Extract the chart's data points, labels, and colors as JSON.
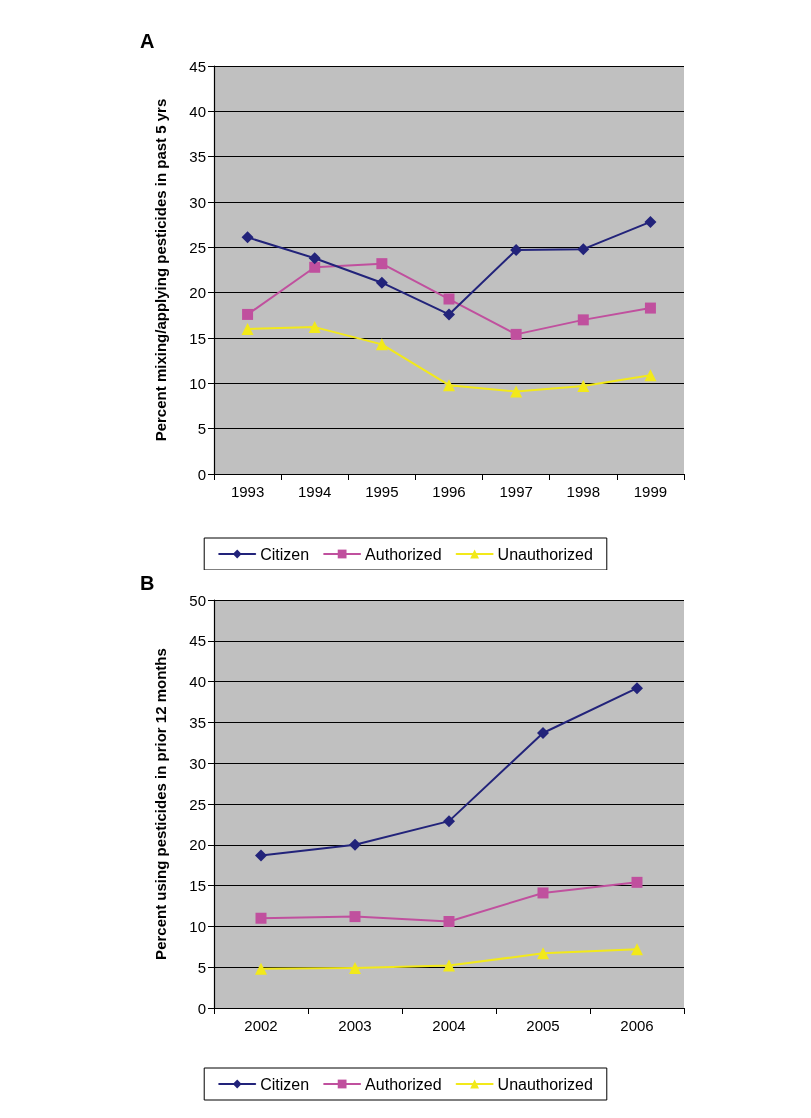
{
  "chart_data": [
    {
      "type": "line",
      "title": "A",
      "ylabel": "Percent mixing/applying pesticides in past 5 yrs",
      "categories": [
        "1993",
        "1994",
        "1995",
        "1996",
        "1997",
        "1998",
        "1999"
      ],
      "ylim": [
        0,
        45
      ],
      "yticks": [
        0,
        5,
        10,
        15,
        20,
        25,
        30,
        35,
        40,
        45
      ],
      "grid": "y",
      "legend": "bottom",
      "line_style": "solid",
      "series": [
        {
          "name": "Citizen",
          "color": "#22237a",
          "marker": "diamond",
          "values": [
            26.1,
            23.8,
            21.1,
            17.6,
            24.7,
            24.8,
            27.8
          ]
        },
        {
          "name": "Authorized",
          "color": "#c0509e",
          "marker": "square",
          "values": [
            17.6,
            22.8,
            23.2,
            19.3,
            15.4,
            17.0,
            18.3
          ]
        },
        {
          "name": "Unauthorized",
          "color": "#f2e91a",
          "marker": "triangle",
          "values": [
            16.0,
            16.2,
            14.3,
            9.8,
            9.1,
            9.7,
            10.9
          ]
        }
      ]
    },
    {
      "type": "line",
      "title": "B",
      "ylabel": "Percent using pesticides in prior 12 months",
      "categories": [
        "2002",
        "2003",
        "2004",
        "2005",
        "2006"
      ],
      "ylim": [
        0,
        50
      ],
      "yticks": [
        0,
        5,
        10,
        15,
        20,
        25,
        30,
        35,
        40,
        45,
        50
      ],
      "grid": "y",
      "legend": "bottom",
      "line_style": "solid",
      "series": [
        {
          "name": "Citizen",
          "color": "#22237a",
          "marker": "diamond",
          "values": [
            18.7,
            20.0,
            22.9,
            33.7,
            39.2
          ]
        },
        {
          "name": "Authorized",
          "color": "#c0509e",
          "marker": "square",
          "values": [
            11.0,
            11.2,
            10.6,
            14.1,
            15.4
          ]
        },
        {
          "name": "Unauthorized",
          "color": "#f2e91a",
          "marker": "triangle",
          "values": [
            4.8,
            4.9,
            5.2,
            6.7,
            7.2
          ]
        }
      ]
    }
  ]
}
